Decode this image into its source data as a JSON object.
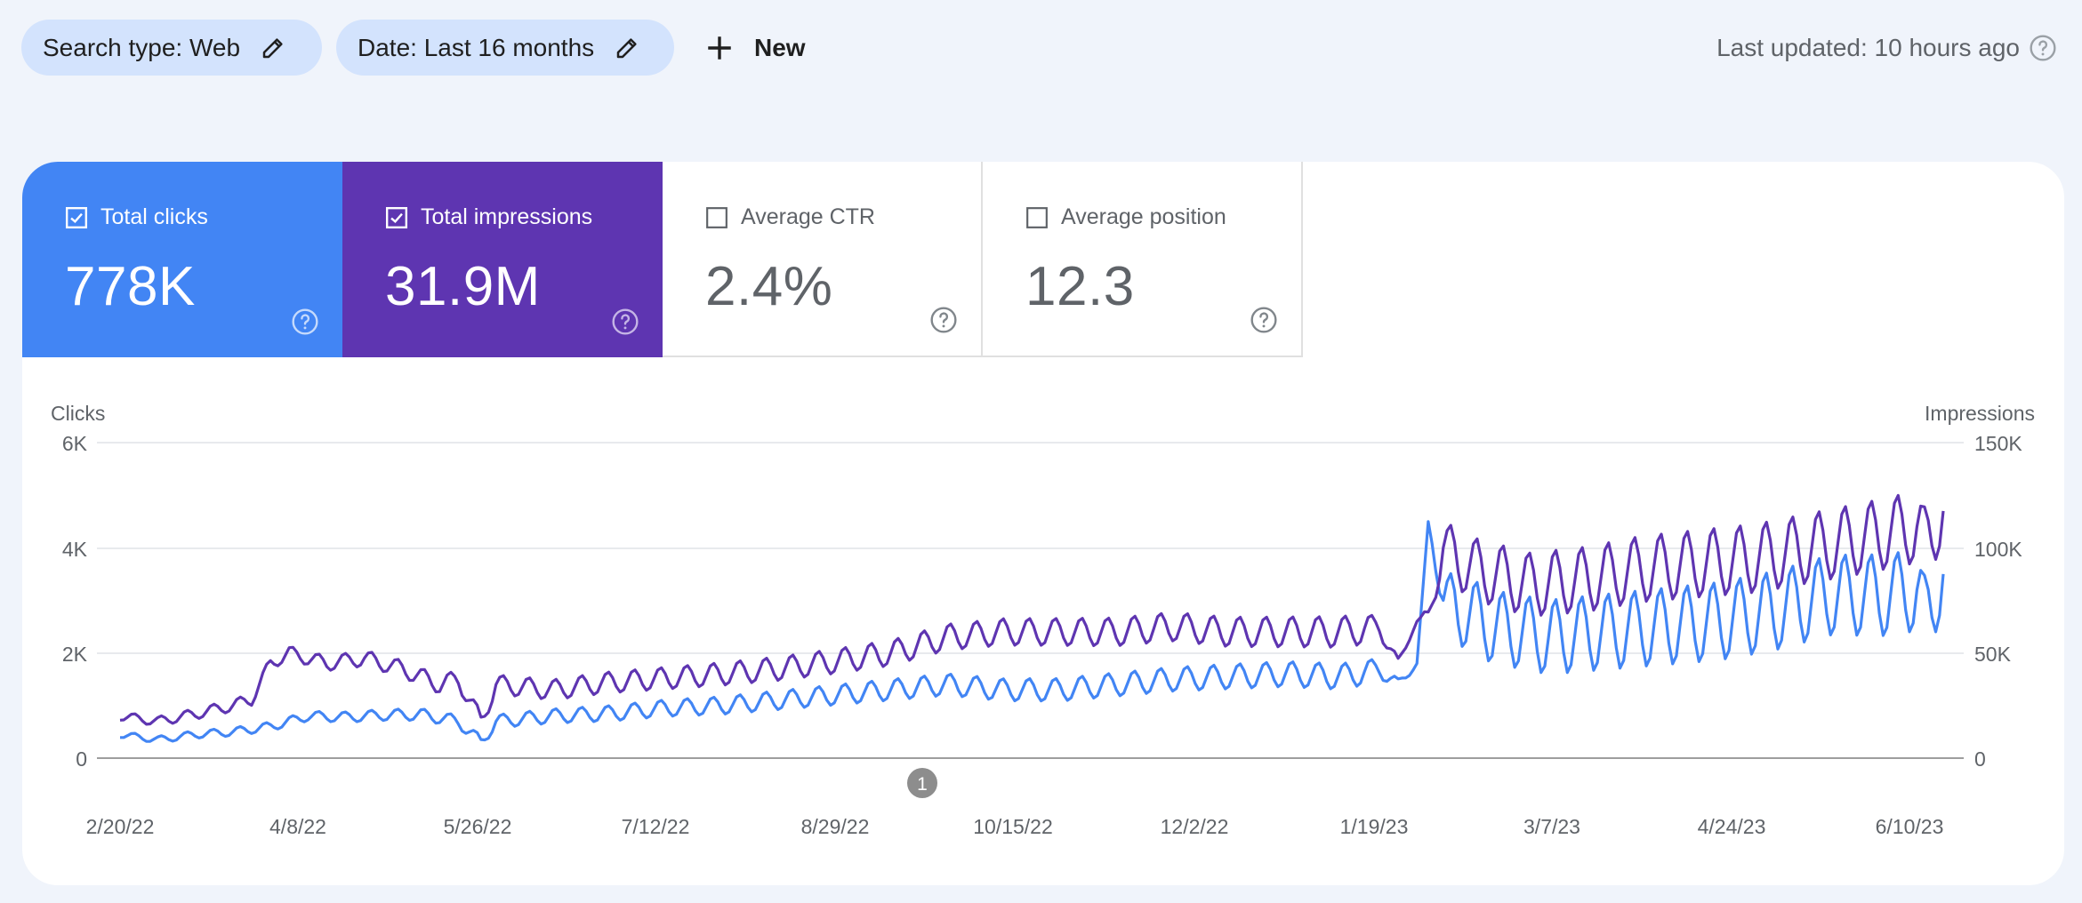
{
  "filters": {
    "search_type": "Search type: Web",
    "date": "Date: Last 16 months",
    "new_label": "New"
  },
  "last_updated": "Last updated: 10 hours ago",
  "metrics": [
    {
      "label": "Total clicks",
      "value": "778K",
      "checked": true,
      "color": "#4285f4"
    },
    {
      "label": "Total impressions",
      "value": "31.9M",
      "checked": true,
      "color": "#5e35b1"
    },
    {
      "label": "Average CTR",
      "value": "2.4%",
      "checked": false
    },
    {
      "label": "Average position",
      "value": "12.3",
      "checked": false
    }
  ],
  "annotation_marker": "1",
  "chart_data": {
    "type": "line",
    "y_left_label": "Clicks",
    "y_right_label": "Impressions",
    "y_left_ticks": [
      "0",
      "2K",
      "4K",
      "6K"
    ],
    "y_right_ticks": [
      "0",
      "50K",
      "100K",
      "150K"
    ],
    "ylim_left": [
      0,
      6000
    ],
    "ylim_right": [
      0,
      150000
    ],
    "x_tick_labels": [
      "2/20/22",
      "4/8/22",
      "5/26/22",
      "7/12/22",
      "8/29/22",
      "10/15/22",
      "12/2/22",
      "1/19/23",
      "3/7/23",
      "4/24/23",
      "6/10/23"
    ],
    "grid": true,
    "series": [
      {
        "name": "Clicks",
        "axis": "left",
        "color": "#4285f4",
        "anchors": [
          [
            0,
            450
          ],
          [
            10,
            350
          ],
          [
            20,
            450
          ],
          [
            30,
            500
          ],
          [
            40,
            600
          ],
          [
            50,
            800
          ],
          [
            60,
            780
          ],
          [
            70,
            820
          ],
          [
            80,
            830
          ],
          [
            90,
            700
          ],
          [
            96,
            300
          ],
          [
            100,
            700
          ],
          [
            115,
            800
          ],
          [
            130,
            850
          ],
          [
            145,
            950
          ],
          [
            160,
            1000
          ],
          [
            175,
            1100
          ],
          [
            190,
            1200
          ],
          [
            205,
            1300
          ],
          [
            220,
            1400
          ],
          [
            235,
            1300
          ],
          [
            250,
            1300
          ],
          [
            265,
            1400
          ],
          [
            280,
            1500
          ],
          [
            295,
            1550
          ],
          [
            310,
            1600
          ],
          [
            325,
            1550
          ],
          [
            335,
            1700
          ],
          [
            340,
            1400
          ],
          [
            345,
            1800
          ],
          [
            348,
            4500
          ],
          [
            352,
            3000
          ],
          [
            365,
            2500
          ],
          [
            380,
            2300
          ],
          [
            395,
            2400
          ],
          [
            410,
            2500
          ],
          [
            425,
            2600
          ],
          [
            440,
            2800
          ],
          [
            455,
            3100
          ],
          [
            470,
            3100
          ],
          [
            478,
            3200
          ],
          [
            480,
            2700
          ],
          [
            485,
            3500
          ]
        ],
        "amplitude": [
          [
            0,
            60
          ],
          [
            90,
            120
          ],
          [
            200,
            200
          ],
          [
            330,
            250
          ],
          [
            348,
            0
          ],
          [
            355,
            700
          ],
          [
            485,
            800
          ]
        ]
      },
      {
        "name": "Impressions",
        "axis": "right",
        "color": "#5e35b1",
        "anchors": [
          [
            0,
            20000
          ],
          [
            10,
            17500
          ],
          [
            20,
            21000
          ],
          [
            30,
            25000
          ],
          [
            35,
            28000
          ],
          [
            40,
            45000
          ],
          [
            45,
            50000
          ],
          [
            55,
            45000
          ],
          [
            65,
            47500
          ],
          [
            75,
            42500
          ],
          [
            85,
            35000
          ],
          [
            90,
            37500
          ],
          [
            96,
            17500
          ],
          [
            100,
            35000
          ],
          [
            115,
            32500
          ],
          [
            130,
            36000
          ],
          [
            145,
            38000
          ],
          [
            160,
            40000
          ],
          [
            175,
            42500
          ],
          [
            190,
            46000
          ],
          [
            205,
            50000
          ],
          [
            220,
            57500
          ],
          [
            235,
            60000
          ],
          [
            250,
            60000
          ],
          [
            265,
            60000
          ],
          [
            280,
            62500
          ],
          [
            295,
            60000
          ],
          [
            310,
            60000
          ],
          [
            325,
            60000
          ],
          [
            335,
            62500
          ],
          [
            340,
            45000
          ],
          [
            345,
            65000
          ],
          [
            348,
            67500
          ],
          [
            352,
            100000
          ],
          [
            360,
            90000
          ],
          [
            375,
            82500
          ],
          [
            390,
            85000
          ],
          [
            405,
            90000
          ],
          [
            420,
            92500
          ],
          [
            435,
            95000
          ],
          [
            450,
            100000
          ],
          [
            465,
            105000
          ],
          [
            478,
            110000
          ],
          [
            480,
            102500
          ],
          [
            485,
            117500
          ]
        ],
        "amplitude": [
          [
            0,
            2000
          ],
          [
            90,
            4500
          ],
          [
            200,
            6000
          ],
          [
            330,
            7500
          ],
          [
            345,
            0
          ],
          [
            355,
            15000
          ],
          [
            485,
            17500
          ]
        ]
      }
    ]
  }
}
